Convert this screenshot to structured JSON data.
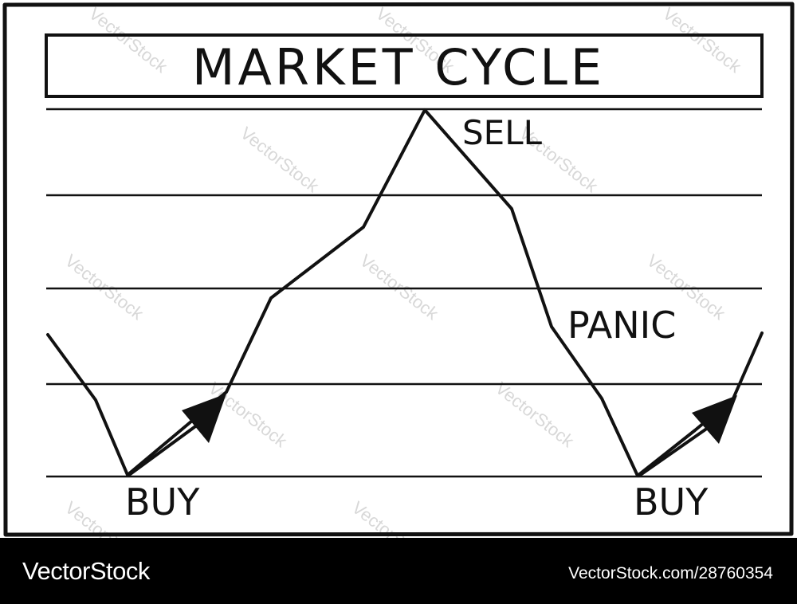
{
  "diagram": {
    "title": "MARKET CYCLE",
    "labels": {
      "sell": "SELL",
      "panic": "PANIC",
      "buy_left": "BUY",
      "buy_right": "BUY"
    }
  },
  "watermark": "VectorStock",
  "footer": {
    "brand": "VectorStock",
    "reference": "VectorStock.com/28760354"
  }
}
